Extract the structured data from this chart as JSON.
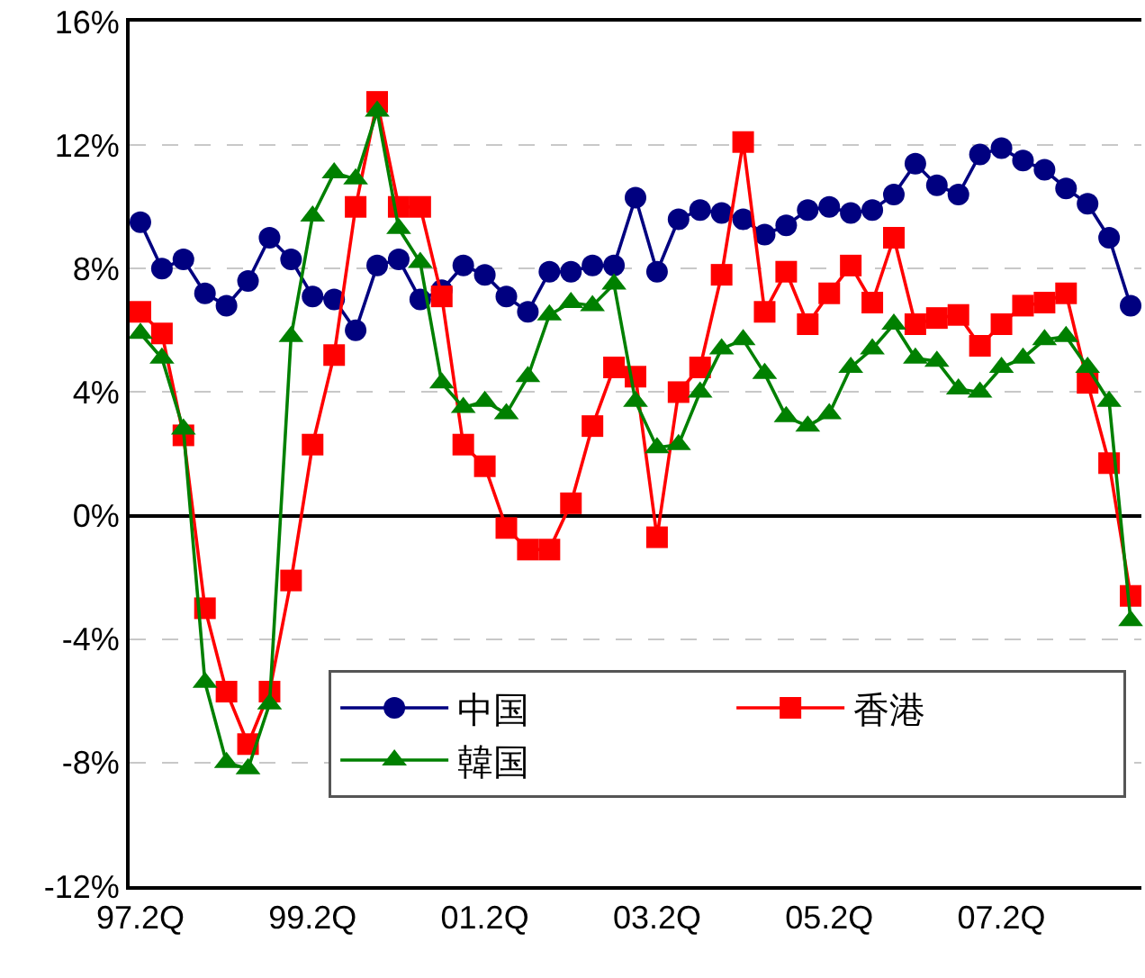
{
  "chart_data": {
    "type": "line",
    "categories": [
      "97.2Q",
      null,
      null,
      null,
      null,
      null,
      null,
      null,
      "99.2Q",
      null,
      null,
      null,
      null,
      null,
      null,
      null,
      "01.2Q",
      null,
      null,
      null,
      null,
      null,
      null,
      null,
      "03.2Q",
      null,
      null,
      null,
      null,
      null,
      null,
      null,
      "05.2Q",
      null,
      null,
      null,
      null,
      null,
      null,
      null,
      "07.2Q",
      null,
      null,
      null,
      null,
      null,
      null
    ],
    "series": [
      {
        "name": "中国",
        "color": "#000080",
        "marker": "circle",
        "values": [
          9.5,
          8.0,
          8.3,
          7.2,
          6.8,
          7.6,
          9.0,
          8.3,
          7.1,
          7.0,
          6.0,
          8.1,
          8.3,
          7.0,
          7.3,
          8.1,
          7.8,
          7.1,
          6.6,
          7.9,
          7.9,
          8.1,
          8.1,
          10.3,
          7.9,
          9.6,
          9.9,
          9.8,
          9.6,
          9.1,
          9.4,
          9.9,
          10.0,
          9.8,
          9.9,
          10.4,
          11.4,
          10.7,
          10.4,
          11.7,
          11.9,
          11.5,
          11.2,
          10.6,
          10.1,
          9.0,
          6.8
        ]
      },
      {
        "name": "香港",
        "color": "#ff0000",
        "marker": "square",
        "values": [
          6.6,
          5.9,
          2.6,
          -3.0,
          -5.7,
          -7.4,
          -5.7,
          -2.1,
          2.3,
          5.2,
          10.0,
          13.4,
          10.0,
          10.0,
          7.1,
          2.3,
          1.6,
          -0.4,
          -1.1,
          -1.1,
          0.4,
          2.9,
          4.8,
          4.5,
          -0.7,
          4.0,
          4.8,
          7.8,
          12.1,
          6.6,
          7.9,
          6.2,
          7.2,
          8.1,
          6.9,
          9.0,
          6.2,
          6.4,
          6.5,
          5.5,
          6.2,
          6.8,
          6.9,
          7.2,
          4.3,
          1.7,
          -2.6
        ]
      },
      {
        "name": "韓国",
        "color": "#008000",
        "marker": "triangle",
        "values": [
          5.9,
          5.1,
          2.8,
          -5.4,
          -8.0,
          -8.2,
          -6.1,
          5.8,
          9.7,
          11.1,
          10.9,
          13.1,
          9.3,
          8.2,
          4.3,
          3.5,
          3.7,
          3.3,
          4.5,
          6.5,
          6.9,
          6.8,
          7.5,
          3.7,
          2.2,
          2.3,
          4.0,
          5.4,
          5.7,
          4.6,
          3.2,
          2.9,
          3.3,
          4.8,
          5.4,
          6.2,
          5.1,
          5.0,
          4.1,
          4.0,
          4.8,
          5.1,
          5.7,
          5.8,
          4.8,
          3.7,
          -3.4
        ]
      }
    ],
    "ylim": [
      -12,
      16
    ],
    "yticks": [
      {
        "value": -12,
        "label": "-12%"
      },
      {
        "value": -8,
        "label": "-8%"
      },
      {
        "value": -4,
        "label": "-4%"
      },
      {
        "value": 0,
        "label": "0%"
      },
      {
        "value": 4,
        "label": "4%"
      },
      {
        "value": 8,
        "label": "8%"
      },
      {
        "value": 12,
        "label": "12%"
      },
      {
        "value": 16,
        "label": "16%"
      }
    ],
    "grid": "y",
    "legend": "bottom right",
    "line_style": "solid"
  }
}
